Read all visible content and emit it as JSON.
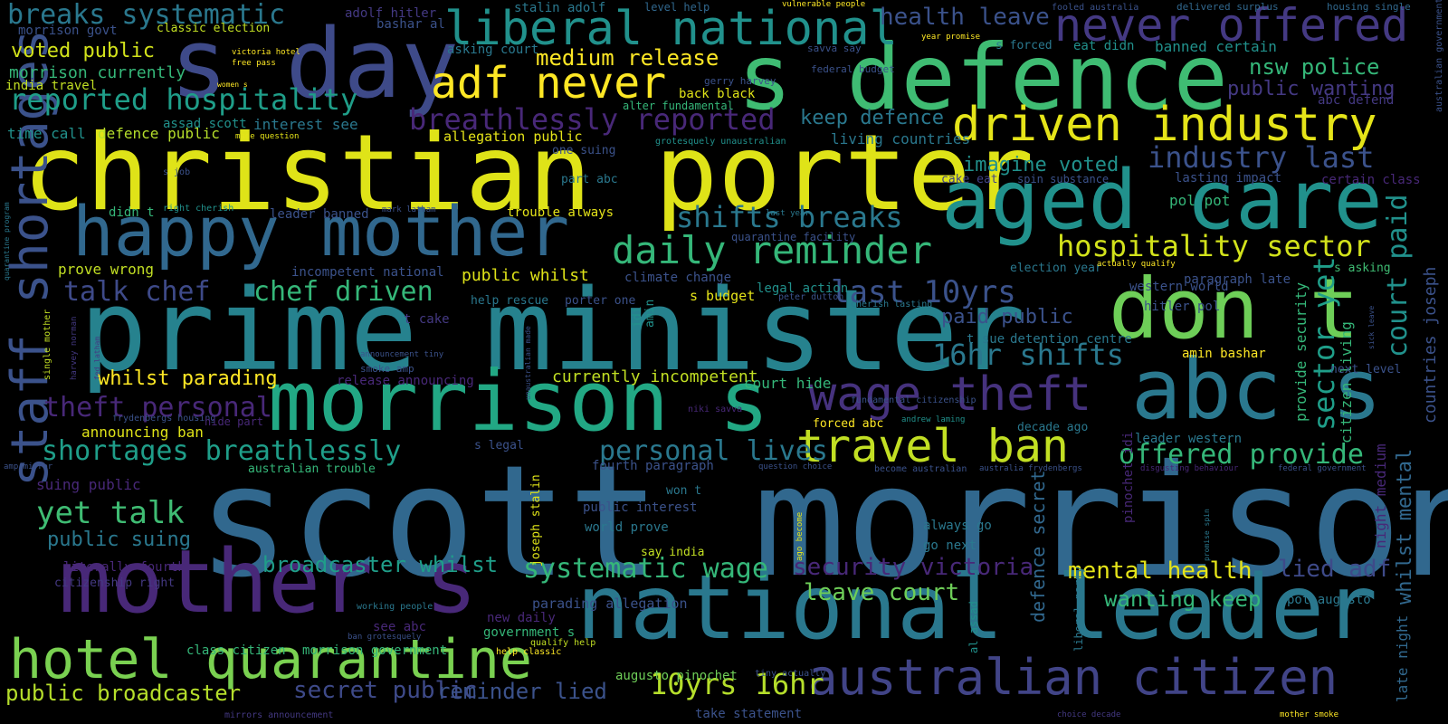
{
  "background": "#000000",
  "palette": [
    "#440154",
    "#482878",
    "#3e4a89",
    "#31688e",
    "#26828e",
    "#1f9e89",
    "#35b779",
    "#6ece58",
    "#b5de2b",
    "#fde725"
  ],
  "words": [
    {
      "text": "scott morrison",
      "color": "#31688e"
    },
    {
      "text": "prime minister",
      "color": "#26828e"
    },
    {
      "text": "christian porter",
      "color": "#dfe318"
    },
    {
      "text": "s defence",
      "color": "#3fbc73"
    },
    {
      "text": "national leader",
      "color": "#2a788e"
    },
    {
      "text": "aged care",
      "color": "#21918c"
    },
    {
      "text": "morrison s",
      "color": "#22a884"
    },
    {
      "text": "s day",
      "color": "#3e4a89"
    },
    {
      "text": "don t",
      "color": "#6ece58"
    },
    {
      "text": "abc s",
      "color": "#2a788e"
    },
    {
      "text": "mother s",
      "color": "#482878"
    },
    {
      "text": "happy mother",
      "color": "#31688e"
    },
    {
      "text": "hotel quarantine",
      "color": "#7ad151"
    },
    {
      "text": "liberal national",
      "color": "#21918c"
    },
    {
      "text": "never offered",
      "color": "#443983"
    },
    {
      "text": "driven industry",
      "color": "#e5e419"
    },
    {
      "text": "australian citizen",
      "color": "#414487"
    },
    {
      "text": "wage theft",
      "color": "#46327e"
    },
    {
      "text": "travel ban",
      "color": "#c2df23"
    },
    {
      "text": "daily reminder",
      "color": "#35b779"
    },
    {
      "text": "adf never",
      "color": "#fde725"
    },
    {
      "text": "staff shortages",
      "color": "#3b528b"
    },
    {
      "text": "breaks systematic",
      "color": "#2a788e"
    },
    {
      "text": "breathlessly reported",
      "color": "#482878"
    },
    {
      "text": "reported hospitality",
      "color": "#1f9e89"
    },
    {
      "text": "shifts breaks",
      "color": "#2a788e"
    },
    {
      "text": "hospitality sector",
      "color": "#d2e21b"
    },
    {
      "text": "industry last",
      "color": "#3b528b"
    },
    {
      "text": "chef driven",
      "color": "#35b779"
    },
    {
      "text": "talk chef",
      "color": "#3e4a89"
    },
    {
      "text": "last 10yrs",
      "color": "#3b528b"
    },
    {
      "text": "16hr shifts",
      "color": "#2a788e"
    },
    {
      "text": "10yrs 16hr",
      "color": "#b5de2b"
    },
    {
      "text": "theft personal",
      "color": "#482878"
    },
    {
      "text": "shortages breathlessly",
      "color": "#1f9e89"
    },
    {
      "text": "personal lives",
      "color": "#2a788e"
    },
    {
      "text": "offered provide",
      "color": "#35b779"
    },
    {
      "text": "sector yet",
      "color": "#1f9e89"
    },
    {
      "text": "court paid",
      "color": "#21918c"
    },
    {
      "text": "systematic wage",
      "color": "#35b779"
    },
    {
      "text": "yet talk",
      "color": "#3fbc73"
    },
    {
      "text": "public broadcaster",
      "color": "#b5de2b"
    },
    {
      "text": "secret public",
      "color": "#3e4a89"
    },
    {
      "text": "reminder lied",
      "color": "#3b528b"
    },
    {
      "text": "mental health",
      "color": "#e5e419"
    },
    {
      "text": "lied adf",
      "color": "#3e4a89"
    },
    {
      "text": "security victoria",
      "color": "#482878"
    },
    {
      "text": "wanting keep",
      "color": "#35b779"
    },
    {
      "text": "leave court",
      "color": "#6ece58"
    },
    {
      "text": "broadcaster whilst",
      "color": "#1f9e89"
    },
    {
      "text": "health leave",
      "color": "#3b528b"
    },
    {
      "text": "medium release",
      "color": "#fde725"
    },
    {
      "text": "nsw police",
      "color": "#35b779"
    },
    {
      "text": "public wanting",
      "color": "#443983"
    },
    {
      "text": "keep defence",
      "color": "#2a788e"
    },
    {
      "text": "imagine voted",
      "color": "#21918c"
    },
    {
      "text": "paid public",
      "color": "#3b528b"
    },
    {
      "text": "voted public",
      "color": "#d2e21b"
    },
    {
      "text": "morrison currently",
      "color": "#35b779"
    },
    {
      "text": "whilst parading",
      "color": "#fde725"
    },
    {
      "text": "currently incompetent",
      "color": "#c2df23"
    },
    {
      "text": "public whilst",
      "color": "#dfe318"
    },
    {
      "text": "public suing",
      "color": "#2a788e"
    },
    {
      "text": "whilst mental",
      "color": "#31688e"
    },
    {
      "text": "defence secret",
      "color": "#31688e"
    },
    {
      "text": "provide security",
      "color": "#35b779"
    },
    {
      "text": "countries joseph",
      "color": "#3b528b"
    },
    {
      "text": "citizen living",
      "color": "#35b779"
    },
    {
      "text": "night medium",
      "color": "#482878"
    },
    {
      "text": "late night",
      "color": "#31688e"
    },
    {
      "text": "morrison govt",
      "color": "#3b528b"
    },
    {
      "text": "classic election",
      "color": "#c2df23"
    },
    {
      "text": "india travel",
      "color": "#c2df23"
    },
    {
      "text": "adolf hitler",
      "color": "#443983"
    },
    {
      "text": "bashar al",
      "color": "#3b528b"
    },
    {
      "text": "stalin adolf",
      "color": "#2a788e"
    },
    {
      "text": "level help",
      "color": "#31688e"
    },
    {
      "text": "vulnerable people",
      "color": "#fde725"
    },
    {
      "text": "fooled australia",
      "color": "#3b528b"
    },
    {
      "text": "delivered surplus",
      "color": "#31688e"
    },
    {
      "text": "housing single",
      "color": "#31688e"
    },
    {
      "text": "australian government",
      "color": "#3b528b"
    },
    {
      "text": "asking court",
      "color": "#2a788e"
    },
    {
      "text": "victoria hotel",
      "color": "#fde725"
    },
    {
      "text": "free pass",
      "color": "#fde725"
    },
    {
      "text": "savva say",
      "color": "#3b528b"
    },
    {
      "text": "year promise",
      "color": "#fde725"
    },
    {
      "text": "s forced",
      "color": "#2a788e"
    },
    {
      "text": "eat didn",
      "color": "#21918c"
    },
    {
      "text": "banned certain",
      "color": "#21918c"
    },
    {
      "text": "abc defend",
      "color": "#443983"
    },
    {
      "text": "gerry harvey",
      "color": "#3b528b"
    },
    {
      "text": "federal budget",
      "color": "#3b528b"
    },
    {
      "text": "back black",
      "color": "#dfe318"
    },
    {
      "text": "alter fundamental",
      "color": "#35b779"
    },
    {
      "text": "assad scott",
      "color": "#21918c"
    },
    {
      "text": "interest see",
      "color": "#2a788e"
    },
    {
      "text": "time call",
      "color": "#21918c"
    },
    {
      "text": "defence public",
      "color": "#b5de2b"
    },
    {
      "text": "made question",
      "color": "#e5e419"
    },
    {
      "text": "allegation public",
      "color": "#e5e419"
    },
    {
      "text": "grotesquely unaustralian",
      "color": "#21918c"
    },
    {
      "text": "living countries",
      "color": "#2a788e"
    },
    {
      "text": "one suing",
      "color": "#3b528b"
    },
    {
      "text": "part abc",
      "color": "#2a788e"
    },
    {
      "text": "cake eat",
      "color": "#414487"
    },
    {
      "text": "spin substance",
      "color": "#3b528b"
    },
    {
      "text": "lasting impact",
      "color": "#3b528b"
    },
    {
      "text": "certain class",
      "color": "#482878"
    },
    {
      "text": "s job",
      "color": "#3b528b"
    },
    {
      "text": "right cherish",
      "color": "#21918c"
    },
    {
      "text": "didn t",
      "color": "#35b779"
    },
    {
      "text": "leader banned",
      "color": "#3b528b"
    },
    {
      "text": "mark latham",
      "color": "#3b528b"
    },
    {
      "text": "trouble always",
      "color": "#e5e419"
    },
    {
      "text": "last year",
      "color": "#2a788e"
    },
    {
      "text": "pol pot",
      "color": "#35b779"
    },
    {
      "text": "quarantine program",
      "color": "#2a788e"
    },
    {
      "text": "quarantine facility",
      "color": "#3b528b"
    },
    {
      "text": "prove wrong",
      "color": "#c2df23"
    },
    {
      "text": "incompetent national",
      "color": "#3b528b"
    },
    {
      "text": "climate change",
      "color": "#3b528b"
    },
    {
      "text": "legal action",
      "color": "#21918c"
    },
    {
      "text": "election year",
      "color": "#2a788e"
    },
    {
      "text": "actually qualify",
      "color": "#fde725"
    },
    {
      "text": "s asking",
      "color": "#3fbc73"
    },
    {
      "text": "paragraph late",
      "color": "#3b528b"
    },
    {
      "text": "western world",
      "color": "#3b528b"
    },
    {
      "text": "hitler pol",
      "color": "#3b528b"
    },
    {
      "text": "help rescue",
      "color": "#2a788e"
    },
    {
      "text": "porter one",
      "color": "#3b528b"
    },
    {
      "text": "s budget",
      "color": "#e5e419"
    },
    {
      "text": "peter dutton",
      "color": "#3b528b"
    },
    {
      "text": "amin",
      "color": "#21918c"
    },
    {
      "text": "idi",
      "color": "#21918c"
    },
    {
      "text": "cherish lasting",
      "color": "#2a788e"
    },
    {
      "text": "t cake",
      "color": "#443983"
    },
    {
      "text": "t sue",
      "color": "#2a788e"
    },
    {
      "text": "detention centre",
      "color": "#2a788e"
    },
    {
      "text": "amin bashar",
      "color": "#fde725"
    },
    {
      "text": "next level",
      "color": "#3b528b"
    },
    {
      "text": "sick leave",
      "color": "#3b528b"
    },
    {
      "text": "single mother",
      "color": "#c2df23"
    },
    {
      "text": "harvey norman",
      "color": "#443983"
    },
    {
      "text": "fed latham",
      "color": "#443983"
    },
    {
      "text": "announcement tiny",
      "color": "#3b528b"
    },
    {
      "text": "smoke amp",
      "color": "#3b528b"
    },
    {
      "text": "unaustralian made",
      "color": "#3b528b"
    },
    {
      "text": "release announcing",
      "color": "#482878"
    },
    {
      "text": "court hide",
      "color": "#35b779"
    },
    {
      "text": "niki savva",
      "color": "#482878"
    },
    {
      "text": "fundamental citizenship",
      "color": "#3b528b"
    },
    {
      "text": "frydenbergs housing",
      "color": "#3b528b"
    },
    {
      "text": "hide part",
      "color": "#482878"
    },
    {
      "text": "announcing ban",
      "color": "#dfe318"
    },
    {
      "text": "andrew laming",
      "color": "#21918c"
    },
    {
      "text": "forced abc",
      "color": "#fde725"
    },
    {
      "text": "decade ago",
      "color": "#2a788e"
    },
    {
      "text": "leader western",
      "color": "#2a788e"
    },
    {
      "text": "pinochet idi",
      "color": "#482878"
    },
    {
      "text": "s legal",
      "color": "#3b528b"
    },
    {
      "text": "amp mirror",
      "color": "#3b528b"
    },
    {
      "text": "australian trouble",
      "color": "#35b779"
    },
    {
      "text": "fourth paragraph",
      "color": "#3b528b"
    },
    {
      "text": "question choice",
      "color": "#3b528b"
    },
    {
      "text": "become australian",
      "color": "#3b528b"
    },
    {
      "text": "australia frydenbergs",
      "color": "#3b528b"
    },
    {
      "text": "disgusting behaviour",
      "color": "#482878"
    },
    {
      "text": "federal government",
      "color": "#3b528b"
    },
    {
      "text": "suing public",
      "color": "#482878"
    },
    {
      "text": "won t",
      "color": "#2a788e"
    },
    {
      "text": "public interest",
      "color": "#3b528b"
    },
    {
      "text": "joseph stalin",
      "color": "#dfe318"
    },
    {
      "text": "world prove",
      "color": "#2a788e"
    },
    {
      "text": "literally fourth",
      "color": "#482878"
    },
    {
      "text": "citizenship right",
      "color": "#443983"
    },
    {
      "text": "say india",
      "color": "#c2df23"
    },
    {
      "text": "always go",
      "color": "#2a788e"
    },
    {
      "text": "go next",
      "color": "#2a788e"
    },
    {
      "text": "ago become",
      "color": "#e5e419"
    },
    {
      "text": "promise spin",
      "color": "#2a788e"
    },
    {
      "text": "liberal party",
      "color": "#2a788e"
    },
    {
      "text": "al assad",
      "color": "#21918c"
    },
    {
      "text": "pot augusto",
      "color": "#2a788e"
    },
    {
      "text": "working people",
      "color": "#2a788e"
    },
    {
      "text": "see abc",
      "color": "#482878"
    },
    {
      "text": "parading allegation",
      "color": "#3b528b"
    },
    {
      "text": "new daily",
      "color": "#482878"
    },
    {
      "text": "ban grotesquely",
      "color": "#3b528b"
    },
    {
      "text": "qualify help",
      "color": "#c2df23"
    },
    {
      "text": "government s",
      "color": "#35b779"
    },
    {
      "text": "class citizen",
      "color": "#35b779"
    },
    {
      "text": "morrison government",
      "color": "#35b779"
    },
    {
      "text": "help classic",
      "color": "#fde725"
    },
    {
      "text": "augusto pinochet",
      "color": "#6ece58"
    },
    {
      "text": "tiny actually",
      "color": "#3b528b"
    },
    {
      "text": "take statement",
      "color": "#3b528b"
    },
    {
      "text": "mirrors announcement",
      "color": "#443983"
    },
    {
      "text": "choice decade",
      "color": "#443983"
    },
    {
      "text": "mother smoke",
      "color": "#fde725"
    },
    {
      "text": "women s",
      "color": "#fde725"
    }
  ]
}
